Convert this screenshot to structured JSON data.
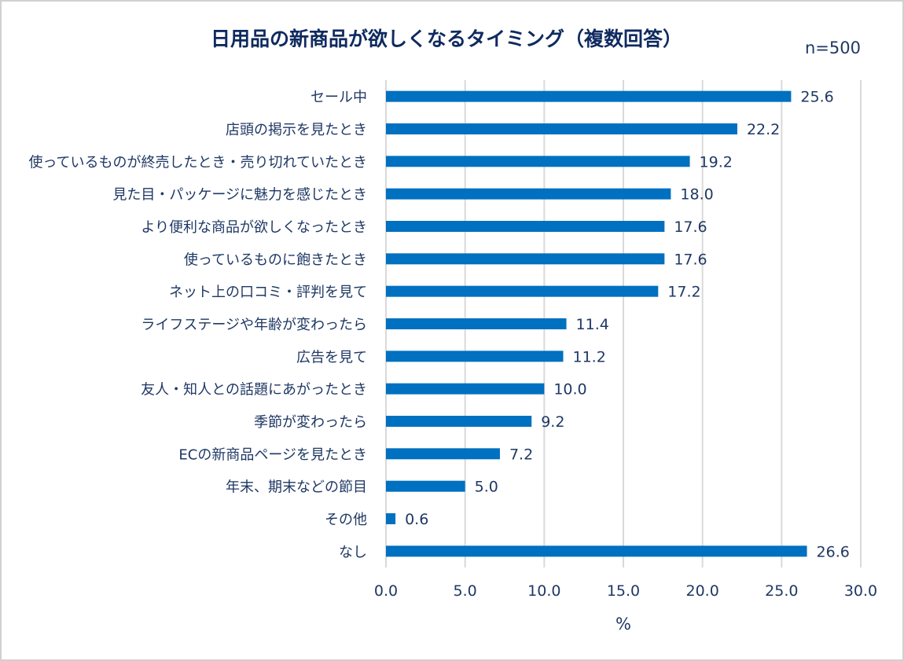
{
  "chart_data": {
    "type": "bar",
    "orientation": "horizontal",
    "title": "日用品の新商品が欲しくなるタイミング（複数回答）",
    "annotation": "n=500",
    "xlabel": "%",
    "ylabel": "",
    "xlim": [
      0,
      30
    ],
    "xticks": [
      "0.0",
      "5.0",
      "10.0",
      "15.0",
      "20.0",
      "25.0",
      "30.0"
    ],
    "grid": true,
    "bar_color": "#0070C0",
    "categories": [
      "セール中",
      "店頭の掲示を見たとき",
      "使っているものが終売したとき・売り切れていたとき",
      "見た目・パッケージに魅力を感じたとき",
      "より便利な商品が欲しくなったとき",
      "使っているものに飽きたとき",
      "ネット上の口コミ・評判を見て",
      "ライフステージや年齢が変わったら",
      "広告を見て",
      "友人・知人との話題にあがったとき",
      "季節が変わったら",
      "ECの新商品ページを見たとき",
      "年末、期末などの節目",
      "その他",
      "なし"
    ],
    "values": [
      25.6,
      22.2,
      19.2,
      18.0,
      17.6,
      17.6,
      17.2,
      11.4,
      11.2,
      10.0,
      9.2,
      7.2,
      5.0,
      0.6,
      26.6
    ],
    "data_labels": [
      "25.6",
      "22.2",
      "19.2",
      "18.0",
      "17.6",
      "17.6",
      "17.2",
      "11.4",
      "11.2",
      "10.0",
      "9.2",
      "7.2",
      "5.0",
      "0.6",
      "26.6"
    ]
  }
}
